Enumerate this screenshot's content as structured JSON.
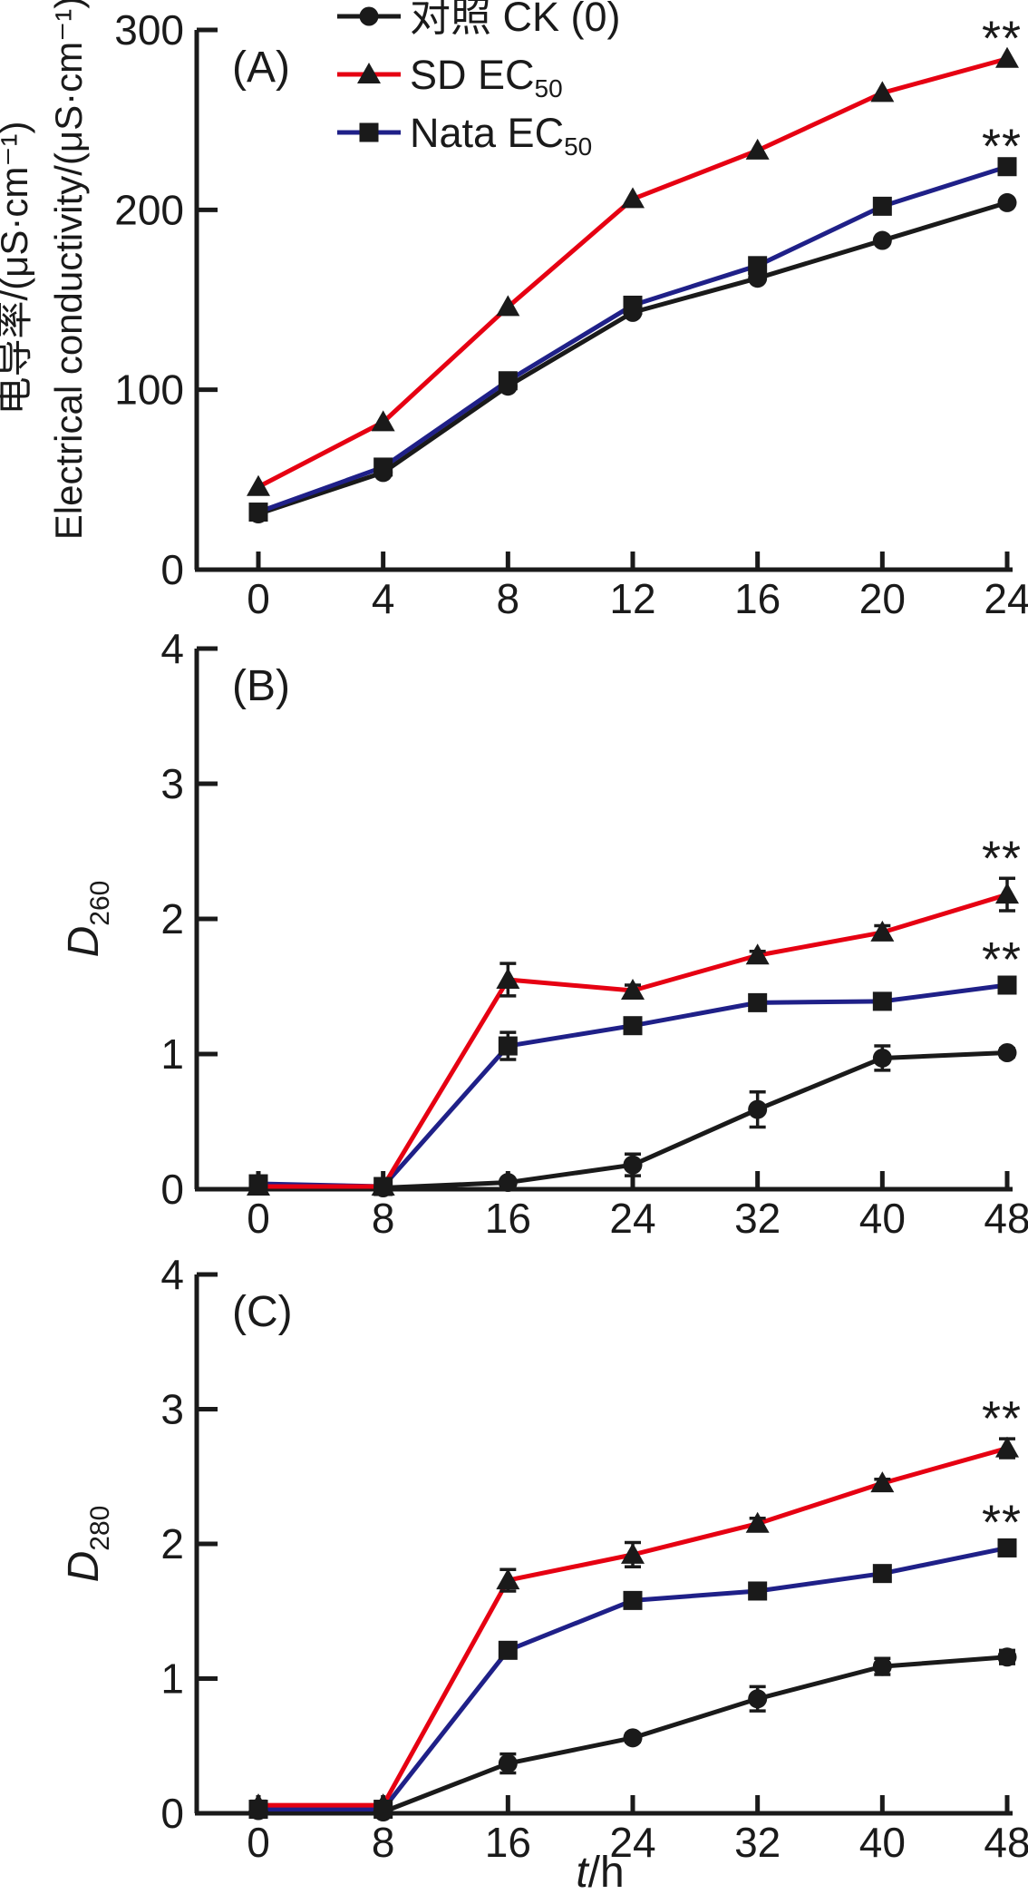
{
  "figure": {
    "description": "Three stacked line charts (A, B, C) comparing control and two antimicrobial treatments over time",
    "significance_marker": "**",
    "colors": {
      "black": "#1a1a1a",
      "red": "#e60012",
      "blue": "#1f2088"
    },
    "legend": {
      "items": [
        {
          "label": "对照 CK (0)",
          "label_main": "对照 CK (0)",
          "label_sub": "",
          "marker": "circle",
          "line_color": "#1a1a1a"
        },
        {
          "label": "SD EC50",
          "label_main": "SD EC",
          "label_sub": "50",
          "marker": "triangle",
          "line_color": "#e60012"
        },
        {
          "label": "Nata EC50",
          "label_main": "Nata EC",
          "label_sub": "50",
          "marker": "square",
          "line_color": "#1f2088"
        }
      ]
    }
  },
  "chart_data": [
    {
      "panel": "A",
      "panel_label": "(A)",
      "type": "line",
      "y_label_lines": [
        "电导率/(μS·cm⁻¹)",
        "Electrical conductivity/(μS·cm⁻¹)"
      ],
      "y_label_main": "",
      "y_label_sub": "",
      "x_label_main": "",
      "x_label_rest": "",
      "x": [
        0,
        4,
        8,
        12,
        16,
        20,
        24
      ],
      "x_ticks": [
        0,
        4,
        8,
        12,
        16,
        20,
        24
      ],
      "y_ticks": [
        0,
        100,
        200,
        300
      ],
      "xlim": [
        0,
        24
      ],
      "ylim": [
        0,
        300
      ],
      "grid": false,
      "series": [
        {
          "name": "对照 CK (0)",
          "key": "ck",
          "color": "#1a1a1a",
          "marker": "circle",
          "values": [
            31,
            54,
            102,
            143,
            162,
            183,
            204
          ],
          "errors": [
            0,
            0,
            0,
            0,
            0,
            0,
            0
          ],
          "sig_last": ""
        },
        {
          "name": "Nata EC50",
          "key": "nata",
          "color": "#1f2088",
          "marker": "square",
          "values": [
            32,
            57,
            105,
            147,
            169,
            202,
            224
          ],
          "errors": [
            0,
            0,
            0,
            0,
            0,
            0,
            0
          ],
          "sig_last": "**"
        },
        {
          "name": "SD EC50",
          "key": "sd",
          "color": "#e60012",
          "marker": "triangle",
          "values": [
            46,
            82,
            146,
            206,
            233,
            265,
            284
          ],
          "errors": [
            0,
            0,
            0,
            0,
            0,
            0,
            0
          ],
          "sig_last": "**"
        }
      ]
    },
    {
      "panel": "B",
      "panel_label": "(B)",
      "type": "line",
      "y_label_lines": [],
      "y_label_main": "D",
      "y_label_sub": "260",
      "x_label_main": "",
      "x_label_rest": "",
      "x": [
        0,
        8,
        16,
        24,
        32,
        40,
        48
      ],
      "x_ticks": [
        0,
        8,
        16,
        24,
        32,
        40,
        48
      ],
      "y_ticks": [
        0,
        1,
        2,
        3,
        4
      ],
      "xlim": [
        0,
        48
      ],
      "ylim": [
        0,
        4
      ],
      "grid": false,
      "series": [
        {
          "name": "对照 CK (0)",
          "key": "ck",
          "color": "#1a1a1a",
          "marker": "circle",
          "values": [
            0.03,
            0.01,
            0.05,
            0.18,
            0.59,
            0.97,
            1.01
          ],
          "errors": [
            0.03,
            0,
            0.02,
            0.08,
            0.13,
            0.09,
            0.03
          ],
          "sig_last": ""
        },
        {
          "name": "Nata EC50",
          "key": "nata",
          "color": "#1f2088",
          "marker": "square",
          "values": [
            0.04,
            0.02,
            1.06,
            1.21,
            1.38,
            1.39,
            1.51
          ],
          "errors": [
            0.04,
            0,
            0.1,
            0.03,
            0.04,
            0.03,
            0.04
          ],
          "sig_last": "**"
        },
        {
          "name": "SD EC50",
          "key": "sd",
          "color": "#e60012",
          "marker": "triangle",
          "values": [
            0.02,
            0.02,
            1.55,
            1.47,
            1.73,
            1.9,
            2.18
          ],
          "errors": [
            0,
            0,
            0.12,
            0.04,
            0.03,
            0.05,
            0.12
          ],
          "sig_last": "**"
        }
      ]
    },
    {
      "panel": "C",
      "panel_label": "(C)",
      "type": "line",
      "y_label_lines": [],
      "y_label_main": "D",
      "y_label_sub": "280",
      "x_label_main": "t",
      "x_label_rest": "/h",
      "x": [
        0,
        8,
        16,
        24,
        32,
        40,
        48
      ],
      "x_ticks": [
        0,
        8,
        16,
        24,
        32,
        40,
        48
      ],
      "y_ticks": [
        0,
        1,
        2,
        3,
        4
      ],
      "xlim": [
        0,
        48
      ],
      "ylim": [
        0,
        4
      ],
      "grid": false,
      "series": [
        {
          "name": "对照 CK (0)",
          "key": "ck",
          "color": "#1a1a1a",
          "marker": "circle",
          "values": [
            0.02,
            0.01,
            0.37,
            0.56,
            0.85,
            1.09,
            1.16
          ],
          "errors": [
            0.03,
            0.01,
            0.07,
            0.03,
            0.09,
            0.06,
            0.05
          ],
          "sig_last": ""
        },
        {
          "name": "Nata EC50",
          "key": "nata",
          "color": "#1f2088",
          "marker": "square",
          "values": [
            0.03,
            0.03,
            1.21,
            1.58,
            1.65,
            1.78,
            1.97
          ],
          "errors": [
            0.02,
            0.02,
            0.04,
            0.03,
            0.03,
            0.03,
            0.04
          ],
          "sig_last": "**"
        },
        {
          "name": "SD EC50",
          "key": "sd",
          "color": "#e60012",
          "marker": "triangle",
          "values": [
            0.06,
            0.06,
            1.73,
            1.92,
            2.15,
            2.45,
            2.71
          ],
          "errors": [
            0.03,
            0.02,
            0.08,
            0.09,
            0.04,
            0.03,
            0.07
          ],
          "sig_last": "**"
        }
      ]
    }
  ]
}
